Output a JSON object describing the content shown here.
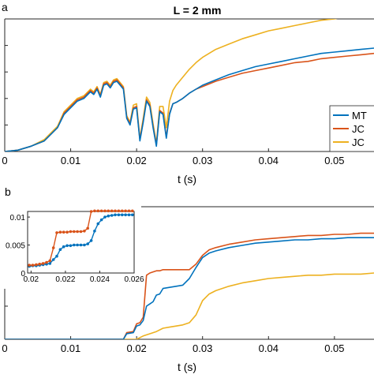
{
  "panel_letters": {
    "a": "a",
    "b": "b"
  },
  "chart_data": [
    {
      "type": "line",
      "panel": "a",
      "title": "L = 2 mm",
      "xlabel": "t (s)",
      "ylabel": "",
      "xlim": [
        0,
        0.056
      ],
      "ylim": [
        0,
        1
      ],
      "xticks": [
        0,
        0.01,
        0.02,
        0.03,
        0.04,
        0.05
      ],
      "xtick_labels": [
        "0",
        "0.01",
        "0.02",
        "0.03",
        "0.04",
        "0.05"
      ],
      "grid": false,
      "legend_position": "right",
      "colors": [
        "#0072BD",
        "#D95319",
        "#EDB120"
      ],
      "series": [
        {
          "name": "MT",
          "x": [
            0,
            0.002,
            0.004,
            0.006,
            0.008,
            0.009,
            0.01,
            0.011,
            0.012,
            0.013,
            0.0135,
            0.014,
            0.0145,
            0.015,
            0.0155,
            0.016,
            0.0165,
            0.017,
            0.0175,
            0.018,
            0.0185,
            0.019,
            0.0195,
            0.02,
            0.0205,
            0.021,
            0.0215,
            0.022,
            0.0225,
            0.023,
            0.0235,
            0.024,
            0.0245,
            0.025,
            0.0255,
            0.026,
            0.027,
            0.028,
            0.029,
            0.03,
            0.032,
            0.034,
            0.036,
            0.038,
            0.04,
            0.042,
            0.044,
            0.046,
            0.048,
            0.05,
            0.052,
            0.054,
            0.056
          ],
          "y": [
            0,
            0.01,
            0.04,
            0.08,
            0.18,
            0.28,
            0.33,
            0.38,
            0.4,
            0.45,
            0.43,
            0.47,
            0.41,
            0.5,
            0.51,
            0.48,
            0.52,
            0.53,
            0.5,
            0.47,
            0.25,
            0.2,
            0.32,
            0.33,
            0.08,
            0.22,
            0.38,
            0.34,
            0.18,
            0.04,
            0.3,
            0.28,
            0.1,
            0.28,
            0.36,
            0.37,
            0.4,
            0.44,
            0.47,
            0.5,
            0.54,
            0.58,
            0.61,
            0.64,
            0.66,
            0.68,
            0.7,
            0.72,
            0.74,
            0.75,
            0.76,
            0.77,
            0.78
          ]
        },
        {
          "name": "JC",
          "x": [
            0,
            0.002,
            0.004,
            0.006,
            0.008,
            0.009,
            0.01,
            0.011,
            0.012,
            0.013,
            0.0135,
            0.014,
            0.0145,
            0.015,
            0.0155,
            0.016,
            0.0165,
            0.017,
            0.0175,
            0.018,
            0.0185,
            0.019,
            0.0195,
            0.02,
            0.0205,
            0.021,
            0.0215,
            0.022,
            0.0225,
            0.023,
            0.0235,
            0.024,
            0.0245,
            0.025,
            0.0255,
            0.026,
            0.027,
            0.028,
            0.029,
            0.03,
            0.032,
            0.034,
            0.036,
            0.038,
            0.04,
            0.042,
            0.044,
            0.046,
            0.048,
            0.05,
            0.052,
            0.054,
            0.056
          ],
          "y": [
            0,
            0.01,
            0.04,
            0.08,
            0.18,
            0.29,
            0.34,
            0.39,
            0.41,
            0.46,
            0.44,
            0.48,
            0.42,
            0.51,
            0.52,
            0.49,
            0.53,
            0.54,
            0.51,
            0.48,
            0.26,
            0.21,
            0.33,
            0.34,
            0.09,
            0.23,
            0.39,
            0.35,
            0.19,
            0.05,
            0.31,
            0.29,
            0.11,
            0.29,
            0.36,
            0.37,
            0.4,
            0.44,
            0.47,
            0.49,
            0.53,
            0.56,
            0.59,
            0.61,
            0.63,
            0.65,
            0.67,
            0.68,
            0.7,
            0.71,
            0.72,
            0.73,
            0.74
          ]
        },
        {
          "name": "JC",
          "x": [
            0,
            0.002,
            0.004,
            0.006,
            0.008,
            0.009,
            0.01,
            0.011,
            0.012,
            0.013,
            0.0135,
            0.014,
            0.0145,
            0.015,
            0.0155,
            0.016,
            0.0165,
            0.017,
            0.0175,
            0.018,
            0.0185,
            0.019,
            0.0195,
            0.02,
            0.0205,
            0.021,
            0.0215,
            0.022,
            0.0225,
            0.023,
            0.0235,
            0.024,
            0.0245,
            0.025,
            0.0255,
            0.026,
            0.027,
            0.028,
            0.029,
            0.03,
            0.032,
            0.034,
            0.036,
            0.038,
            0.04,
            0.042,
            0.044,
            0.046,
            0.048,
            0.05,
            0.052,
            0.054,
            0.056
          ],
          "y": [
            0,
            0.01,
            0.04,
            0.09,
            0.19,
            0.3,
            0.35,
            0.4,
            0.42,
            0.47,
            0.45,
            0.49,
            0.43,
            0.52,
            0.53,
            0.5,
            0.54,
            0.55,
            0.52,
            0.49,
            0.27,
            0.22,
            0.35,
            0.36,
            0.1,
            0.25,
            0.41,
            0.37,
            0.21,
            0.06,
            0.34,
            0.34,
            0.18,
            0.38,
            0.46,
            0.5,
            0.56,
            0.62,
            0.67,
            0.71,
            0.77,
            0.81,
            0.85,
            0.88,
            0.91,
            0.93,
            0.95,
            0.97,
            0.99,
            1.0,
            1.02,
            1.03,
            1.04
          ]
        }
      ]
    },
    {
      "type": "line",
      "panel": "b",
      "title": "",
      "xlabel": "t (s)",
      "ylabel": "",
      "xlim": [
        0,
        0.056
      ],
      "ylim": [
        0,
        0.012
      ],
      "xticks": [
        0,
        0.01,
        0.02,
        0.03,
        0.04,
        0.05
      ],
      "xtick_labels": [
        "0",
        "0.01",
        "0.02",
        "0.03",
        "0.04",
        "0.05"
      ],
      "grid": false,
      "colors": [
        "#0072BD",
        "#D95319",
        "#EDB120"
      ],
      "series": [
        {
          "name": "",
          "x": [
            0,
            0.018,
            0.0185,
            0.0195,
            0.02,
            0.0205,
            0.021,
            0.0215,
            0.022,
            0.0225,
            0.023,
            0.0235,
            0.024,
            0.025,
            0.026,
            0.027,
            0.028,
            0.029,
            0.03,
            0.031,
            0.032,
            0.034,
            0.036,
            0.038,
            0.04,
            0.042,
            0.044,
            0.046,
            0.048,
            0.05,
            0.052,
            0.054,
            0.056
          ],
          "y": [
            0,
            0,
            0.0005,
            0.0006,
            0.0012,
            0.0013,
            0.0017,
            0.003,
            0.0032,
            0.0034,
            0.004,
            0.0041,
            0.0046,
            0.0047,
            0.0048,
            0.0049,
            0.0055,
            0.0065,
            0.0074,
            0.0078,
            0.008,
            0.0083,
            0.0085,
            0.0087,
            0.0088,
            0.0089,
            0.009,
            0.009,
            0.0091,
            0.0091,
            0.0092,
            0.0092,
            0.0092
          ]
        },
        {
          "name": "",
          "x": [
            0,
            0.018,
            0.0185,
            0.0195,
            0.02,
            0.0205,
            0.021,
            0.0215,
            0.022,
            0.0225,
            0.023,
            0.0235,
            0.024,
            0.025,
            0.026,
            0.027,
            0.028,
            0.029,
            0.03,
            0.031,
            0.032,
            0.034,
            0.036,
            0.038,
            0.04,
            0.042,
            0.044,
            0.046,
            0.048,
            0.05,
            0.052,
            0.054,
            0.056
          ],
          "y": [
            0,
            0,
            0.0006,
            0.0007,
            0.0014,
            0.0015,
            0.002,
            0.0058,
            0.006,
            0.0061,
            0.0062,
            0.0062,
            0.0063,
            0.0063,
            0.0063,
            0.0063,
            0.0063,
            0.0068,
            0.0076,
            0.0081,
            0.0083,
            0.0086,
            0.0088,
            0.009,
            0.0091,
            0.0092,
            0.0093,
            0.0094,
            0.0094,
            0.0095,
            0.0095,
            0.0096,
            0.0096
          ]
        },
        {
          "name": "",
          "x": [
            0,
            0.02,
            0.021,
            0.022,
            0.023,
            0.024,
            0.025,
            0.026,
            0.027,
            0.028,
            0.029,
            0.03,
            0.031,
            0.032,
            0.034,
            0.036,
            0.038,
            0.04,
            0.042,
            0.044,
            0.046,
            0.048,
            0.05,
            0.052,
            0.054,
            0.056
          ],
          "y": [
            0,
            0,
            0.0003,
            0.0005,
            0.0007,
            0.001,
            0.0011,
            0.0012,
            0.0013,
            0.0015,
            0.0022,
            0.0035,
            0.0041,
            0.0044,
            0.0048,
            0.0051,
            0.0053,
            0.0055,
            0.0056,
            0.0057,
            0.0058,
            0.0058,
            0.0059,
            0.0059,
            0.0059,
            0.006
          ]
        }
      ],
      "inset": {
        "xlim": [
          0.0198,
          0.026
        ],
        "ylim": [
          0,
          0.011
        ],
        "xticks": [
          0.02,
          0.022,
          0.024,
          0.026
        ],
        "xtick_labels": [
          "0.02",
          "0.022",
          "0.024",
          "0.026"
        ],
        "yticks": [
          0,
          0.005,
          0.01
        ],
        "ytick_labels": [
          "0",
          "0.005",
          "0.01"
        ],
        "series": [
          {
            "name": "",
            "x": [
              0.0199,
              0.0201,
              0.0203,
              0.0205,
              0.0207,
              0.0209,
              0.0211,
              0.0213,
              0.0215,
              0.0217,
              0.0219,
              0.0221,
              0.0223,
              0.0225,
              0.0227,
              0.0229,
              0.0231,
              0.0233,
              0.0235,
              0.0237,
              0.0239,
              0.0241,
              0.0243,
              0.0245,
              0.0247,
              0.0249,
              0.0251,
              0.0253,
              0.0255,
              0.0257,
              0.0259
            ],
            "y": [
              0.0012,
              0.0013,
              0.0013,
              0.0014,
              0.0015,
              0.0016,
              0.0017,
              0.0024,
              0.003,
              0.0042,
              0.0047,
              0.0049,
              0.0049,
              0.005,
              0.005,
              0.005,
              0.005,
              0.0052,
              0.0058,
              0.0075,
              0.0088,
              0.0095,
              0.01,
              0.0102,
              0.0103,
              0.0104,
              0.0104,
              0.0104,
              0.0104,
              0.0104,
              0.0104
            ]
          },
          {
            "name": "",
            "x": [
              0.0199,
              0.0201,
              0.0203,
              0.0205,
              0.0207,
              0.0209,
              0.0211,
              0.0213,
              0.0215,
              0.0217,
              0.0219,
              0.0221,
              0.0223,
              0.0225,
              0.0227,
              0.0229,
              0.0231,
              0.0233,
              0.0235,
              0.0237,
              0.0239,
              0.0241,
              0.0243,
              0.0245,
              0.0247,
              0.0249,
              0.0251,
              0.0253,
              0.0255,
              0.0257,
              0.0259
            ],
            "y": [
              0.0014,
              0.0014,
              0.0015,
              0.0016,
              0.0017,
              0.0019,
              0.0022,
              0.0045,
              0.0072,
              0.0073,
              0.0073,
              0.0073,
              0.0074,
              0.0074,
              0.0074,
              0.0074,
              0.0075,
              0.008,
              0.011,
              0.0111,
              0.0111,
              0.0111,
              0.0111,
              0.0111,
              0.0111,
              0.0111,
              0.0111,
              0.0111,
              0.0111,
              0.0111,
              0.0111
            ]
          }
        ]
      }
    }
  ]
}
